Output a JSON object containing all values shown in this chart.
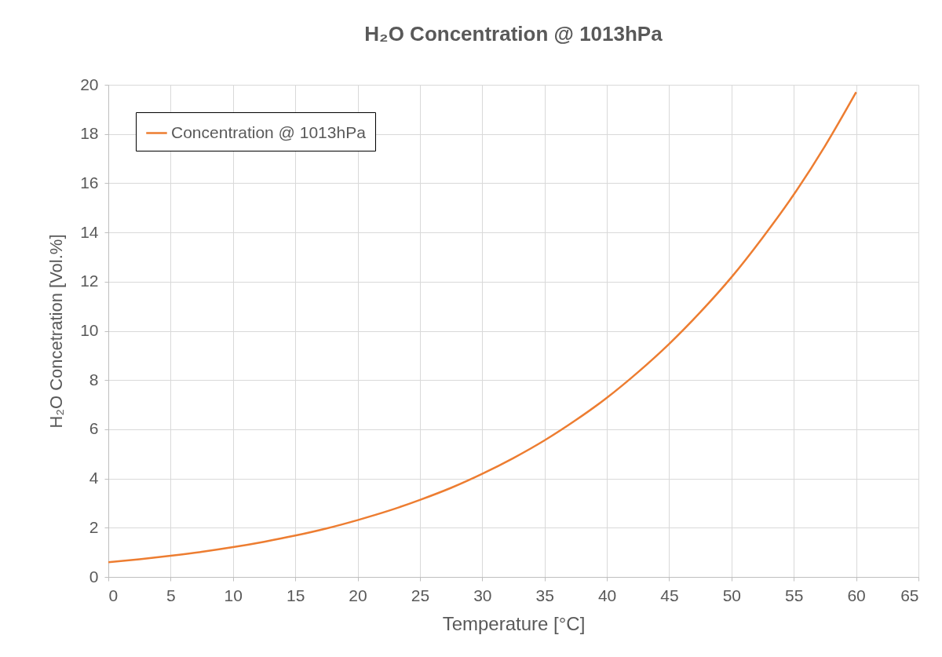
{
  "chart_data": {
    "type": "line",
    "title": "H₂O Concentration @ 1013hPa",
    "xlabel": "Temperature [°C]",
    "ylabel": "H₂O Concetration [Vol.%]",
    "x": [
      0,
      2.5,
      5,
      7.5,
      10,
      12.5,
      15,
      17.5,
      20,
      22.5,
      25,
      27.5,
      30,
      32.5,
      35,
      37.5,
      40,
      42.5,
      45,
      47.5,
      50,
      52.5,
      55,
      57.5,
      60
    ],
    "series": [
      {
        "name": "Concentration @ 1013hPa",
        "color": "#ed7d31",
        "values": [
          0.6,
          0.72,
          0.86,
          1.02,
          1.21,
          1.43,
          1.68,
          1.97,
          2.31,
          2.69,
          3.13,
          3.62,
          4.19,
          4.83,
          5.55,
          6.37,
          7.28,
          8.32,
          9.47,
          10.76,
          12.18,
          13.79,
          15.54,
          17.51,
          19.7
        ]
      }
    ],
    "xlim": [
      0,
      65
    ],
    "xticks": [
      0,
      5,
      10,
      15,
      20,
      25,
      30,
      35,
      40,
      45,
      50,
      55,
      60,
      65
    ],
    "ylim": [
      0,
      20
    ],
    "yticks": [
      0,
      2,
      4,
      6,
      8,
      10,
      12,
      14,
      16,
      18,
      20
    ],
    "grid": true,
    "legend": "top left",
    "line_style": "solid",
    "marker": "none"
  }
}
